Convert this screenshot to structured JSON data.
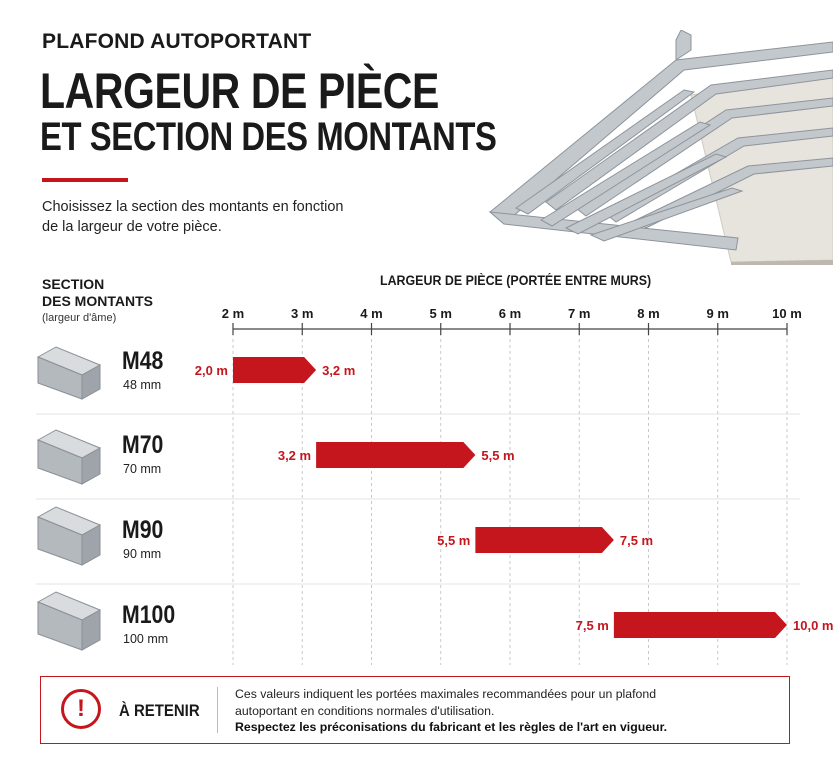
{
  "header": {
    "kicker": "PLAFOND AUTOPORTANT",
    "title_line1": "LARGEUR DE PIÈCE",
    "title_line2": "ET SECTION DES MONTANTS",
    "intro_line1": "Choisissez la section des montants en fonction",
    "intro_line2": "de la largeur de votre pièce."
  },
  "table_head": {
    "section_line1": "SECTION",
    "section_line2": "DES MONTANTS",
    "section_sub": "(largeur d'âme)"
  },
  "profiles": [
    {
      "name": "M48",
      "width": "48 mm"
    },
    {
      "name": "M70",
      "width": "70 mm"
    },
    {
      "name": "M90",
      "width": "90 mm"
    },
    {
      "name": "M100",
      "width": "100 mm"
    }
  ],
  "chart_data": {
    "type": "bar",
    "orientation": "horizontal-range",
    "xlabel": "LARGEUR DE PIÈCE (PORTÉE ENTRE MURS)",
    "xlim": [
      2,
      10
    ],
    "ticks": [
      {
        "value": 2,
        "label": "2 m"
      },
      {
        "value": 3,
        "label": "3 m"
      },
      {
        "value": 4,
        "label": "4 m"
      },
      {
        "value": 5,
        "label": "5 m"
      },
      {
        "value": 6,
        "label": "6 m"
      },
      {
        "value": 7,
        "label": "7 m"
      },
      {
        "value": 8,
        "label": "8 m"
      },
      {
        "value": 9,
        "label": "9 m"
      },
      {
        "value": 10,
        "label": "10 m"
      }
    ],
    "categories": [
      "M48",
      "M70",
      "M90",
      "M100"
    ],
    "ranges": [
      {
        "category": "M48",
        "start": 2.0,
        "end": 3.2,
        "start_label": "2,0 m",
        "end_label": "3,2 m"
      },
      {
        "category": "M70",
        "start": 3.2,
        "end": 5.5,
        "start_label": "3,2 m",
        "end_label": "5,5 m"
      },
      {
        "category": "M90",
        "start": 5.5,
        "end": 7.5,
        "start_label": "5,5 m",
        "end_label": "7,5 m"
      },
      {
        "category": "M100",
        "start": 7.5,
        "end": 10.0,
        "start_label": "7,5 m",
        "end_label": "10,0 m"
      }
    ],
    "bar_color": "#c5161d",
    "grid": true
  },
  "note": {
    "icon": "exclamation-icon",
    "heading": "À RETENIR",
    "line1": "Ces valeurs indiquent les portées maximales recommandées pour un plafond",
    "line2": "autoportant en conditions normales d'utilisation.",
    "line3": "Respectez les préconisations du fabricant et les règles de l'art en vigueur."
  },
  "colors": {
    "accent": "#c5161d",
    "text": "#1a1a1a"
  }
}
